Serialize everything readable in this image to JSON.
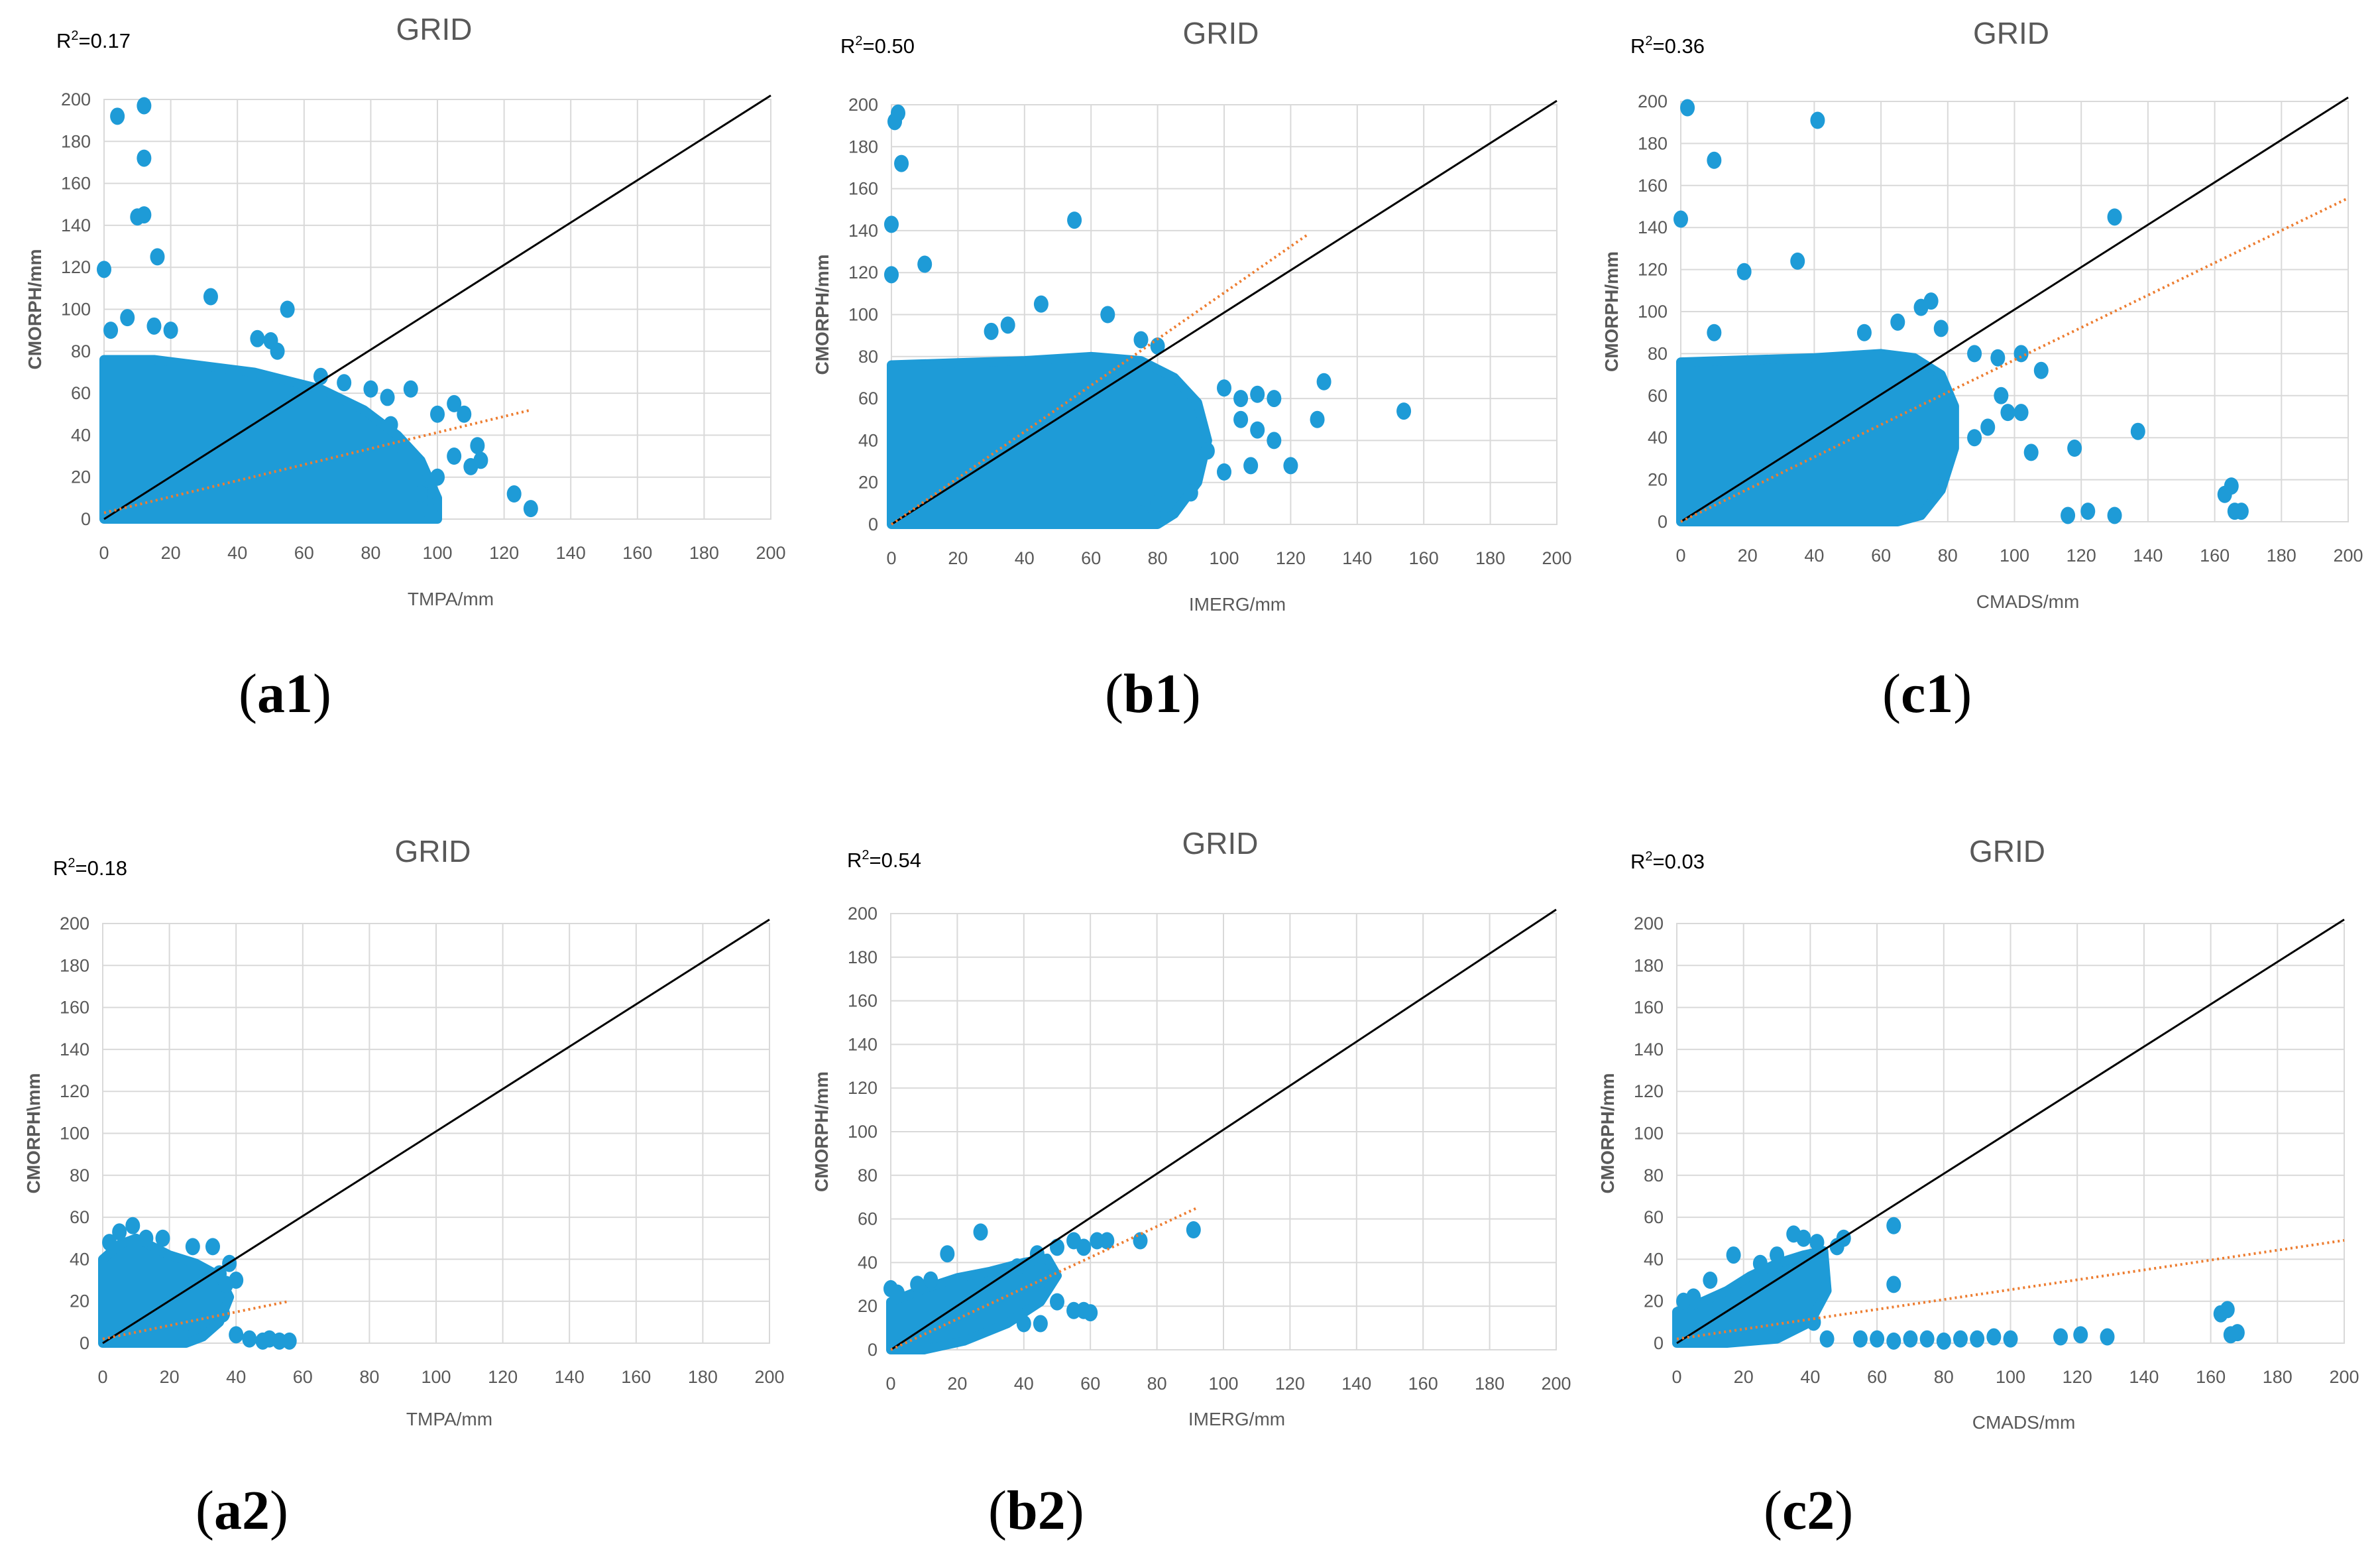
{
  "figure": {
    "colors": {
      "points": "#1e9bd7",
      "identity": "#000000",
      "trend": "#ed7d31",
      "grid": "#d9d9d9",
      "text": "#595959"
    }
  },
  "chart_data": [
    {
      "id": "a1",
      "type": "scatter",
      "title": "GRID",
      "r2_prefix": "R",
      "r2_sup": "2",
      "r2_value": "=0.17",
      "xlabel": "TMPA/mm",
      "ylabel": "CMORPH/mm",
      "panel_label": "a1",
      "xlim": [
        0,
        200
      ],
      "ylim": [
        0,
        200
      ],
      "xticks": [
        0,
        20,
        40,
        60,
        80,
        100,
        120,
        140,
        160,
        180,
        200
      ],
      "yticks": [
        0,
        20,
        40,
        60,
        80,
        100,
        120,
        140,
        160,
        180,
        200
      ],
      "trend": {
        "x": [
          0,
          128
        ],
        "y": [
          3,
          52
        ]
      },
      "cloud": [
        [
          0,
          0
        ],
        [
          0,
          76
        ],
        [
          15,
          76
        ],
        [
          30,
          73
        ],
        [
          45,
          70
        ],
        [
          55,
          66
        ],
        [
          65,
          62
        ],
        [
          78,
          52
        ],
        [
          88,
          40
        ],
        [
          95,
          28
        ],
        [
          100,
          10
        ],
        [
          100,
          0
        ]
      ],
      "points": [
        [
          4,
          192
        ],
        [
          12,
          197
        ],
        [
          12,
          172
        ],
        [
          10,
          144
        ],
        [
          12,
          145
        ],
        [
          16,
          125
        ],
        [
          0,
          119
        ],
        [
          32,
          106
        ],
        [
          55,
          100
        ],
        [
          2,
          90
        ],
        [
          7,
          96
        ],
        [
          15,
          92
        ],
        [
          20,
          90
        ],
        [
          46,
          86
        ],
        [
          50,
          85
        ],
        [
          52,
          80
        ],
        [
          65,
          68
        ],
        [
          72,
          65
        ],
        [
          80,
          62
        ],
        [
          85,
          58
        ],
        [
          92,
          62
        ],
        [
          100,
          50
        ],
        [
          105,
          55
        ],
        [
          108,
          50
        ],
        [
          112,
          35
        ],
        [
          105,
          30
        ],
        [
          100,
          20
        ],
        [
          110,
          25
        ],
        [
          113,
          28
        ],
        [
          123,
          12
        ],
        [
          128,
          5
        ],
        [
          95,
          12
        ],
        [
          98,
          3
        ],
        [
          90,
          30
        ],
        [
          86,
          45
        ],
        [
          84,
          22
        ]
      ]
    },
    {
      "id": "b1",
      "type": "scatter",
      "title": "GRID",
      "r2_prefix": "R",
      "r2_sup": "2",
      "r2_value": "=0.50",
      "xlabel": "IMERG/mm",
      "ylabel": "CMORPH/mm",
      "panel_label": "b1",
      "xlim": [
        0,
        200
      ],
      "ylim": [
        0,
        200
      ],
      "xticks": [
        0,
        20,
        40,
        60,
        80,
        100,
        120,
        140,
        160,
        180,
        200
      ],
      "yticks": [
        0,
        20,
        40,
        60,
        80,
        100,
        120,
        140,
        160,
        180,
        200
      ],
      "trend": {
        "x": [
          0,
          125
        ],
        "y": [
          0,
          138
        ]
      },
      "cloud": [
        [
          0,
          0
        ],
        [
          0,
          76
        ],
        [
          20,
          77
        ],
        [
          40,
          78
        ],
        [
          60,
          80
        ],
        [
          75,
          78
        ],
        [
          85,
          70
        ],
        [
          92,
          58
        ],
        [
          95,
          40
        ],
        [
          92,
          20
        ],
        [
          85,
          5
        ],
        [
          80,
          0
        ]
      ],
      "points": [
        [
          2,
          196
        ],
        [
          1,
          192
        ],
        [
          3,
          172
        ],
        [
          0,
          143
        ],
        [
          10,
          124
        ],
        [
          0,
          119
        ],
        [
          55,
          145
        ],
        [
          45,
          105
        ],
        [
          65,
          100
        ],
        [
          30,
          92
        ],
        [
          35,
          95
        ],
        [
          75,
          88
        ],
        [
          80,
          85
        ],
        [
          100,
          65
        ],
        [
          105,
          60
        ],
        [
          110,
          62
        ],
        [
          115,
          60
        ],
        [
          110,
          45
        ],
        [
          115,
          40
        ],
        [
          120,
          28
        ],
        [
          108,
          28
        ],
        [
          105,
          50
        ],
        [
          128,
          50
        ],
        [
          130,
          68
        ],
        [
          154,
          54
        ],
        [
          95,
          35
        ],
        [
          100,
          25
        ],
        [
          90,
          15
        ],
        [
          80,
          10
        ],
        [
          75,
          5
        ]
      ]
    },
    {
      "id": "c1",
      "type": "scatter",
      "title": "GRID",
      "r2_prefix": "R",
      "r2_sup": "2",
      "r2_value": "=0.36",
      "xlabel": "CMADS/mm",
      "ylabel": "CMORPH/mm",
      "panel_label": "c1",
      "xlim": [
        0,
        200
      ],
      "ylim": [
        0,
        200
      ],
      "xticks": [
        0,
        20,
        40,
        60,
        80,
        100,
        120,
        140,
        160,
        180,
        200
      ],
      "yticks": [
        0,
        20,
        40,
        60,
        80,
        100,
        120,
        140,
        160,
        180,
        200
      ],
      "trend": {
        "x": [
          0,
          200
        ],
        "y": [
          0,
          154
        ]
      },
      "cloud": [
        [
          0,
          0
        ],
        [
          0,
          76
        ],
        [
          20,
          77
        ],
        [
          40,
          78
        ],
        [
          60,
          80
        ],
        [
          70,
          78
        ],
        [
          78,
          70
        ],
        [
          82,
          55
        ],
        [
          82,
          35
        ],
        [
          78,
          15
        ],
        [
          72,
          3
        ],
        [
          65,
          0
        ]
      ],
      "points": [
        [
          2,
          197
        ],
        [
          41,
          191
        ],
        [
          10,
          172
        ],
        [
          0,
          144
        ],
        [
          19,
          119
        ],
        [
          35,
          124
        ],
        [
          130,
          145
        ],
        [
          75,
          105
        ],
        [
          72,
          102
        ],
        [
          65,
          95
        ],
        [
          78,
          92
        ],
        [
          55,
          90
        ],
        [
          10,
          90
        ],
        [
          88,
          80
        ],
        [
          95,
          78
        ],
        [
          102,
          80
        ],
        [
          108,
          72
        ],
        [
          98,
          52
        ],
        [
          102,
          52
        ],
        [
          96,
          60
        ],
        [
          105,
          33
        ],
        [
          118,
          35
        ],
        [
          137,
          43
        ],
        [
          116,
          3
        ],
        [
          122,
          5
        ],
        [
          130,
          3
        ],
        [
          163,
          13
        ],
        [
          165,
          17
        ],
        [
          166,
          5
        ],
        [
          168,
          5
        ],
        [
          88,
          40
        ],
        [
          92,
          45
        ]
      ]
    },
    {
      "id": "a2",
      "type": "scatter",
      "title": "GRID",
      "r2_prefix": "R",
      "r2_sup": "2",
      "r2_value": "=0.18",
      "xlabel": "TMPA/mm",
      "ylabel": "CMORPH\\mm",
      "panel_label": "a2",
      "xlim": [
        0,
        200
      ],
      "ylim": [
        0,
        200
      ],
      "xticks": [
        0,
        20,
        40,
        60,
        80,
        100,
        120,
        140,
        160,
        180,
        200
      ],
      "yticks": [
        0,
        20,
        40,
        60,
        80,
        100,
        120,
        140,
        160,
        180,
        200
      ],
      "trend": {
        "x": [
          0,
          56
        ],
        "y": [
          2,
          20
        ]
      },
      "cloud": [
        [
          0,
          0
        ],
        [
          0,
          40
        ],
        [
          5,
          47
        ],
        [
          10,
          50
        ],
        [
          15,
          46
        ],
        [
          20,
          42
        ],
        [
          28,
          38
        ],
        [
          35,
          32
        ],
        [
          38,
          22
        ],
        [
          35,
          10
        ],
        [
          30,
          3
        ],
        [
          25,
          0
        ]
      ],
      "points": [
        [
          2,
          48
        ],
        [
          5,
          53
        ],
        [
          9,
          56
        ],
        [
          13,
          50
        ],
        [
          18,
          50
        ],
        [
          27,
          46
        ],
        [
          33,
          46
        ],
        [
          38,
          38
        ],
        [
          35,
          33
        ],
        [
          40,
          30
        ],
        [
          37,
          28
        ],
        [
          36,
          14
        ],
        [
          40,
          4
        ],
        [
          44,
          2
        ],
        [
          48,
          1
        ],
        [
          53,
          1
        ],
        [
          56,
          1
        ],
        [
          50,
          2
        ],
        [
          25,
          10
        ],
        [
          30,
          11
        ]
      ]
    },
    {
      "id": "b2",
      "type": "scatter",
      "title": "GRID",
      "r2_prefix": "R",
      "r2_sup": "2",
      "r2_value": "=0.54",
      "xlabel": "IMERG/mm",
      "ylabel": "CMORPH/mm",
      "panel_label": "b2",
      "xlim": [
        0,
        200
      ],
      "ylim": [
        0,
        200
      ],
      "xticks": [
        0,
        20,
        40,
        60,
        80,
        100,
        120,
        140,
        160,
        180,
        200
      ],
      "yticks": [
        0,
        20,
        40,
        60,
        80,
        100,
        120,
        140,
        160,
        180,
        200
      ],
      "trend": {
        "x": [
          0,
          92
        ],
        "y": [
          0,
          65
        ]
      },
      "cloud": [
        [
          0,
          0
        ],
        [
          0,
          22
        ],
        [
          10,
          28
        ],
        [
          20,
          33
        ],
        [
          30,
          36
        ],
        [
          40,
          40
        ],
        [
          47,
          42
        ],
        [
          50,
          34
        ],
        [
          45,
          22
        ],
        [
          35,
          12
        ],
        [
          22,
          4
        ],
        [
          10,
          0
        ]
      ],
      "points": [
        [
          0,
          28
        ],
        [
          2,
          26
        ],
        [
          8,
          30
        ],
        [
          12,
          32
        ],
        [
          17,
          44
        ],
        [
          27,
          54
        ],
        [
          38,
          38
        ],
        [
          44,
          44
        ],
        [
          50,
          47
        ],
        [
          55,
          50
        ],
        [
          58,
          47
        ],
        [
          62,
          50
        ],
        [
          65,
          50
        ],
        [
          75,
          50
        ],
        [
          91,
          55
        ],
        [
          55,
          18
        ],
        [
          58,
          18
        ],
        [
          60,
          17
        ],
        [
          45,
          25
        ],
        [
          50,
          22
        ],
        [
          40,
          12
        ],
        [
          45,
          12
        ]
      ]
    },
    {
      "id": "c2",
      "type": "scatter",
      "title": "GRID",
      "r2_prefix": "R",
      "r2_sup": "2",
      "r2_value": "=0.03",
      "xlabel": "CMADS/mm",
      "ylabel": "CMORPH/mm",
      "panel_label": "c2",
      "xlim": [
        0,
        200
      ],
      "ylim": [
        0,
        200
      ],
      "xticks": [
        0,
        20,
        40,
        60,
        80,
        100,
        120,
        140,
        160,
        180,
        200
      ],
      "yticks": [
        0,
        20,
        40,
        60,
        80,
        100,
        120,
        140,
        160,
        180,
        200
      ],
      "trend": {
        "x": [
          0,
          200
        ],
        "y": [
          2,
          49
        ]
      },
      "cloud": [
        [
          0,
          0
        ],
        [
          0,
          15
        ],
        [
          8,
          20
        ],
        [
          15,
          25
        ],
        [
          22,
          32
        ],
        [
          30,
          38
        ],
        [
          38,
          42
        ],
        [
          44,
          44
        ],
        [
          45,
          25
        ],
        [
          40,
          10
        ],
        [
          30,
          2
        ],
        [
          15,
          0
        ]
      ],
      "points": [
        [
          2,
          20
        ],
        [
          5,
          22
        ],
        [
          10,
          30
        ],
        [
          17,
          42
        ],
        [
          25,
          38
        ],
        [
          30,
          42
        ],
        [
          35,
          52
        ],
        [
          38,
          50
        ],
        [
          42,
          48
        ],
        [
          48,
          46
        ],
        [
          50,
          50
        ],
        [
          65,
          56
        ],
        [
          65,
          28
        ],
        [
          41,
          10
        ],
        [
          45,
          2
        ],
        [
          55,
          2
        ],
        [
          60,
          2
        ],
        [
          65,
          1
        ],
        [
          70,
          2
        ],
        [
          75,
          2
        ],
        [
          80,
          1
        ],
        [
          85,
          2
        ],
        [
          90,
          2
        ],
        [
          95,
          3
        ],
        [
          100,
          2
        ],
        [
          115,
          3
        ],
        [
          121,
          4
        ],
        [
          129,
          3
        ],
        [
          163,
          14
        ],
        [
          165,
          16
        ],
        [
          166,
          4
        ],
        [
          168,
          5
        ]
      ]
    }
  ]
}
